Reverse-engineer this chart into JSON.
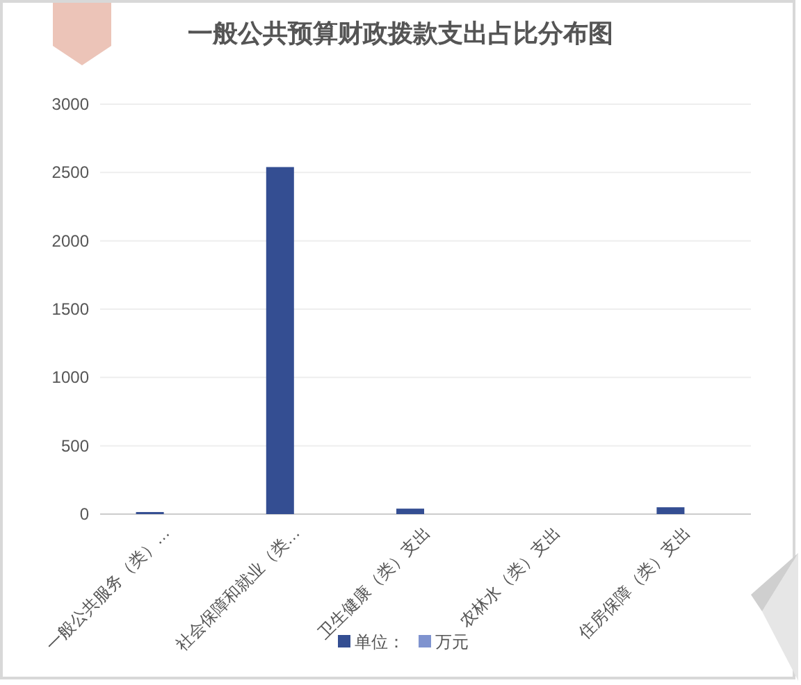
{
  "chart_data": {
    "type": "bar",
    "title": "一般公共预算财政拨款支出占比分布图",
    "categories": [
      "一般公共服务（类）…",
      "社会保障和就业（类…",
      "卫生健康（类）支出",
      "农林水（类）支出",
      "住房保障（类）支出"
    ],
    "series": [
      {
        "name": "单位：",
        "color": "#344e92",
        "values": [
          15,
          2540,
          40,
          0,
          50
        ]
      },
      {
        "name": "万元",
        "color": "#7f93cf",
        "values": [
          null,
          null,
          null,
          null,
          null
        ]
      }
    ],
    "ylim": [
      0,
      3000
    ],
    "yticks": [
      0,
      500,
      1000,
      1500,
      2000,
      2500,
      3000
    ],
    "grid": "y",
    "legend": "bottom"
  }
}
